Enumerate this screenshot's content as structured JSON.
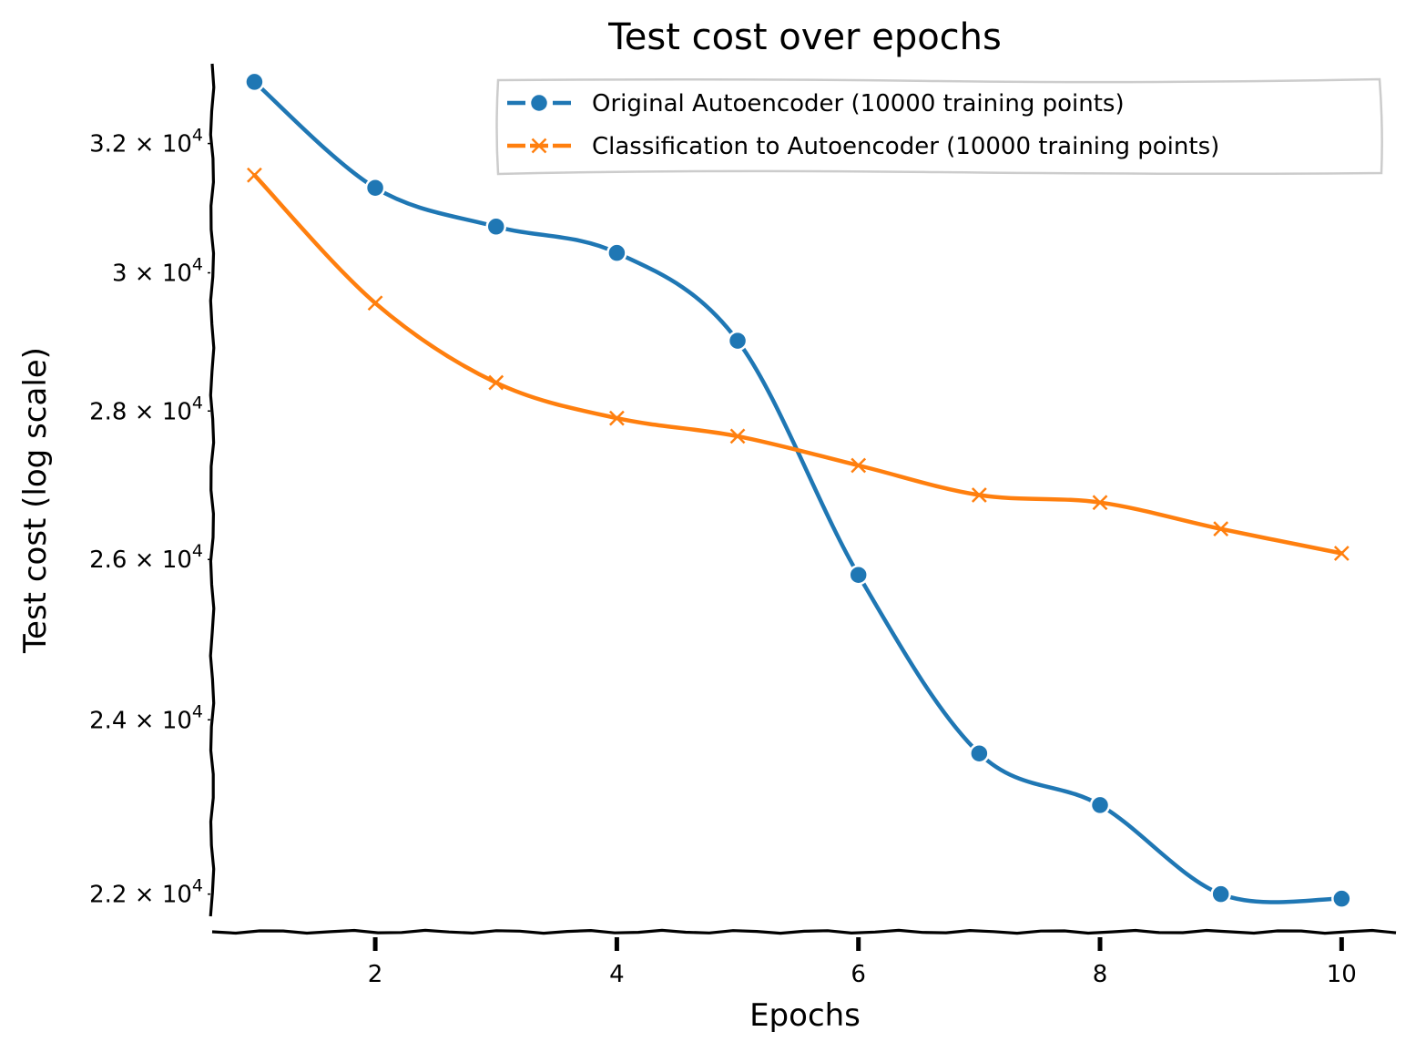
{
  "chart_data": {
    "type": "line",
    "title": "Test cost over epochs",
    "xlabel": "Epochs",
    "ylabel": "Test cost (log scale)",
    "yscale": "log",
    "xlim": [
      0.65,
      10.48
    ],
    "ylim": [
      21600,
      33300
    ],
    "x_ticks": [
      2,
      4,
      6,
      8,
      10
    ],
    "y_ticks": [
      {
        "value": 22000,
        "mantissa": "2.2",
        "base": "10",
        "exp": "4"
      },
      {
        "value": 24000,
        "mantissa": "2.4",
        "base": "10",
        "exp": "4"
      },
      {
        "value": 26000,
        "mantissa": "2.6",
        "base": "10",
        "exp": "4"
      },
      {
        "value": 28000,
        "mantissa": "2.8",
        "base": "10",
        "exp": "4"
      },
      {
        "value": 30000,
        "mantissa": "3",
        "base": "10",
        "exp": "4"
      },
      {
        "value": 32000,
        "mantissa": "3.2",
        "base": "10",
        "exp": "4"
      }
    ],
    "grid": false,
    "legend_position": "top-right",
    "x": [
      1,
      2,
      3,
      4,
      5,
      6,
      7,
      8,
      9,
      10
    ],
    "series": [
      {
        "name": "Original Autoencoder (10000 training points)",
        "color": "#1f77b4",
        "marker": "circle",
        "values": [
          33000,
          31300,
          30700,
          30300,
          29000,
          25800,
          23600,
          23000,
          22000,
          21950
        ]
      },
      {
        "name": "Classification to Autoencoder (10000 training points)",
        "color": "#ff7f0e",
        "marker": "x",
        "values": [
          31500,
          29550,
          28400,
          27900,
          27650,
          27250,
          26850,
          26750,
          26400,
          26080
        ]
      }
    ]
  }
}
